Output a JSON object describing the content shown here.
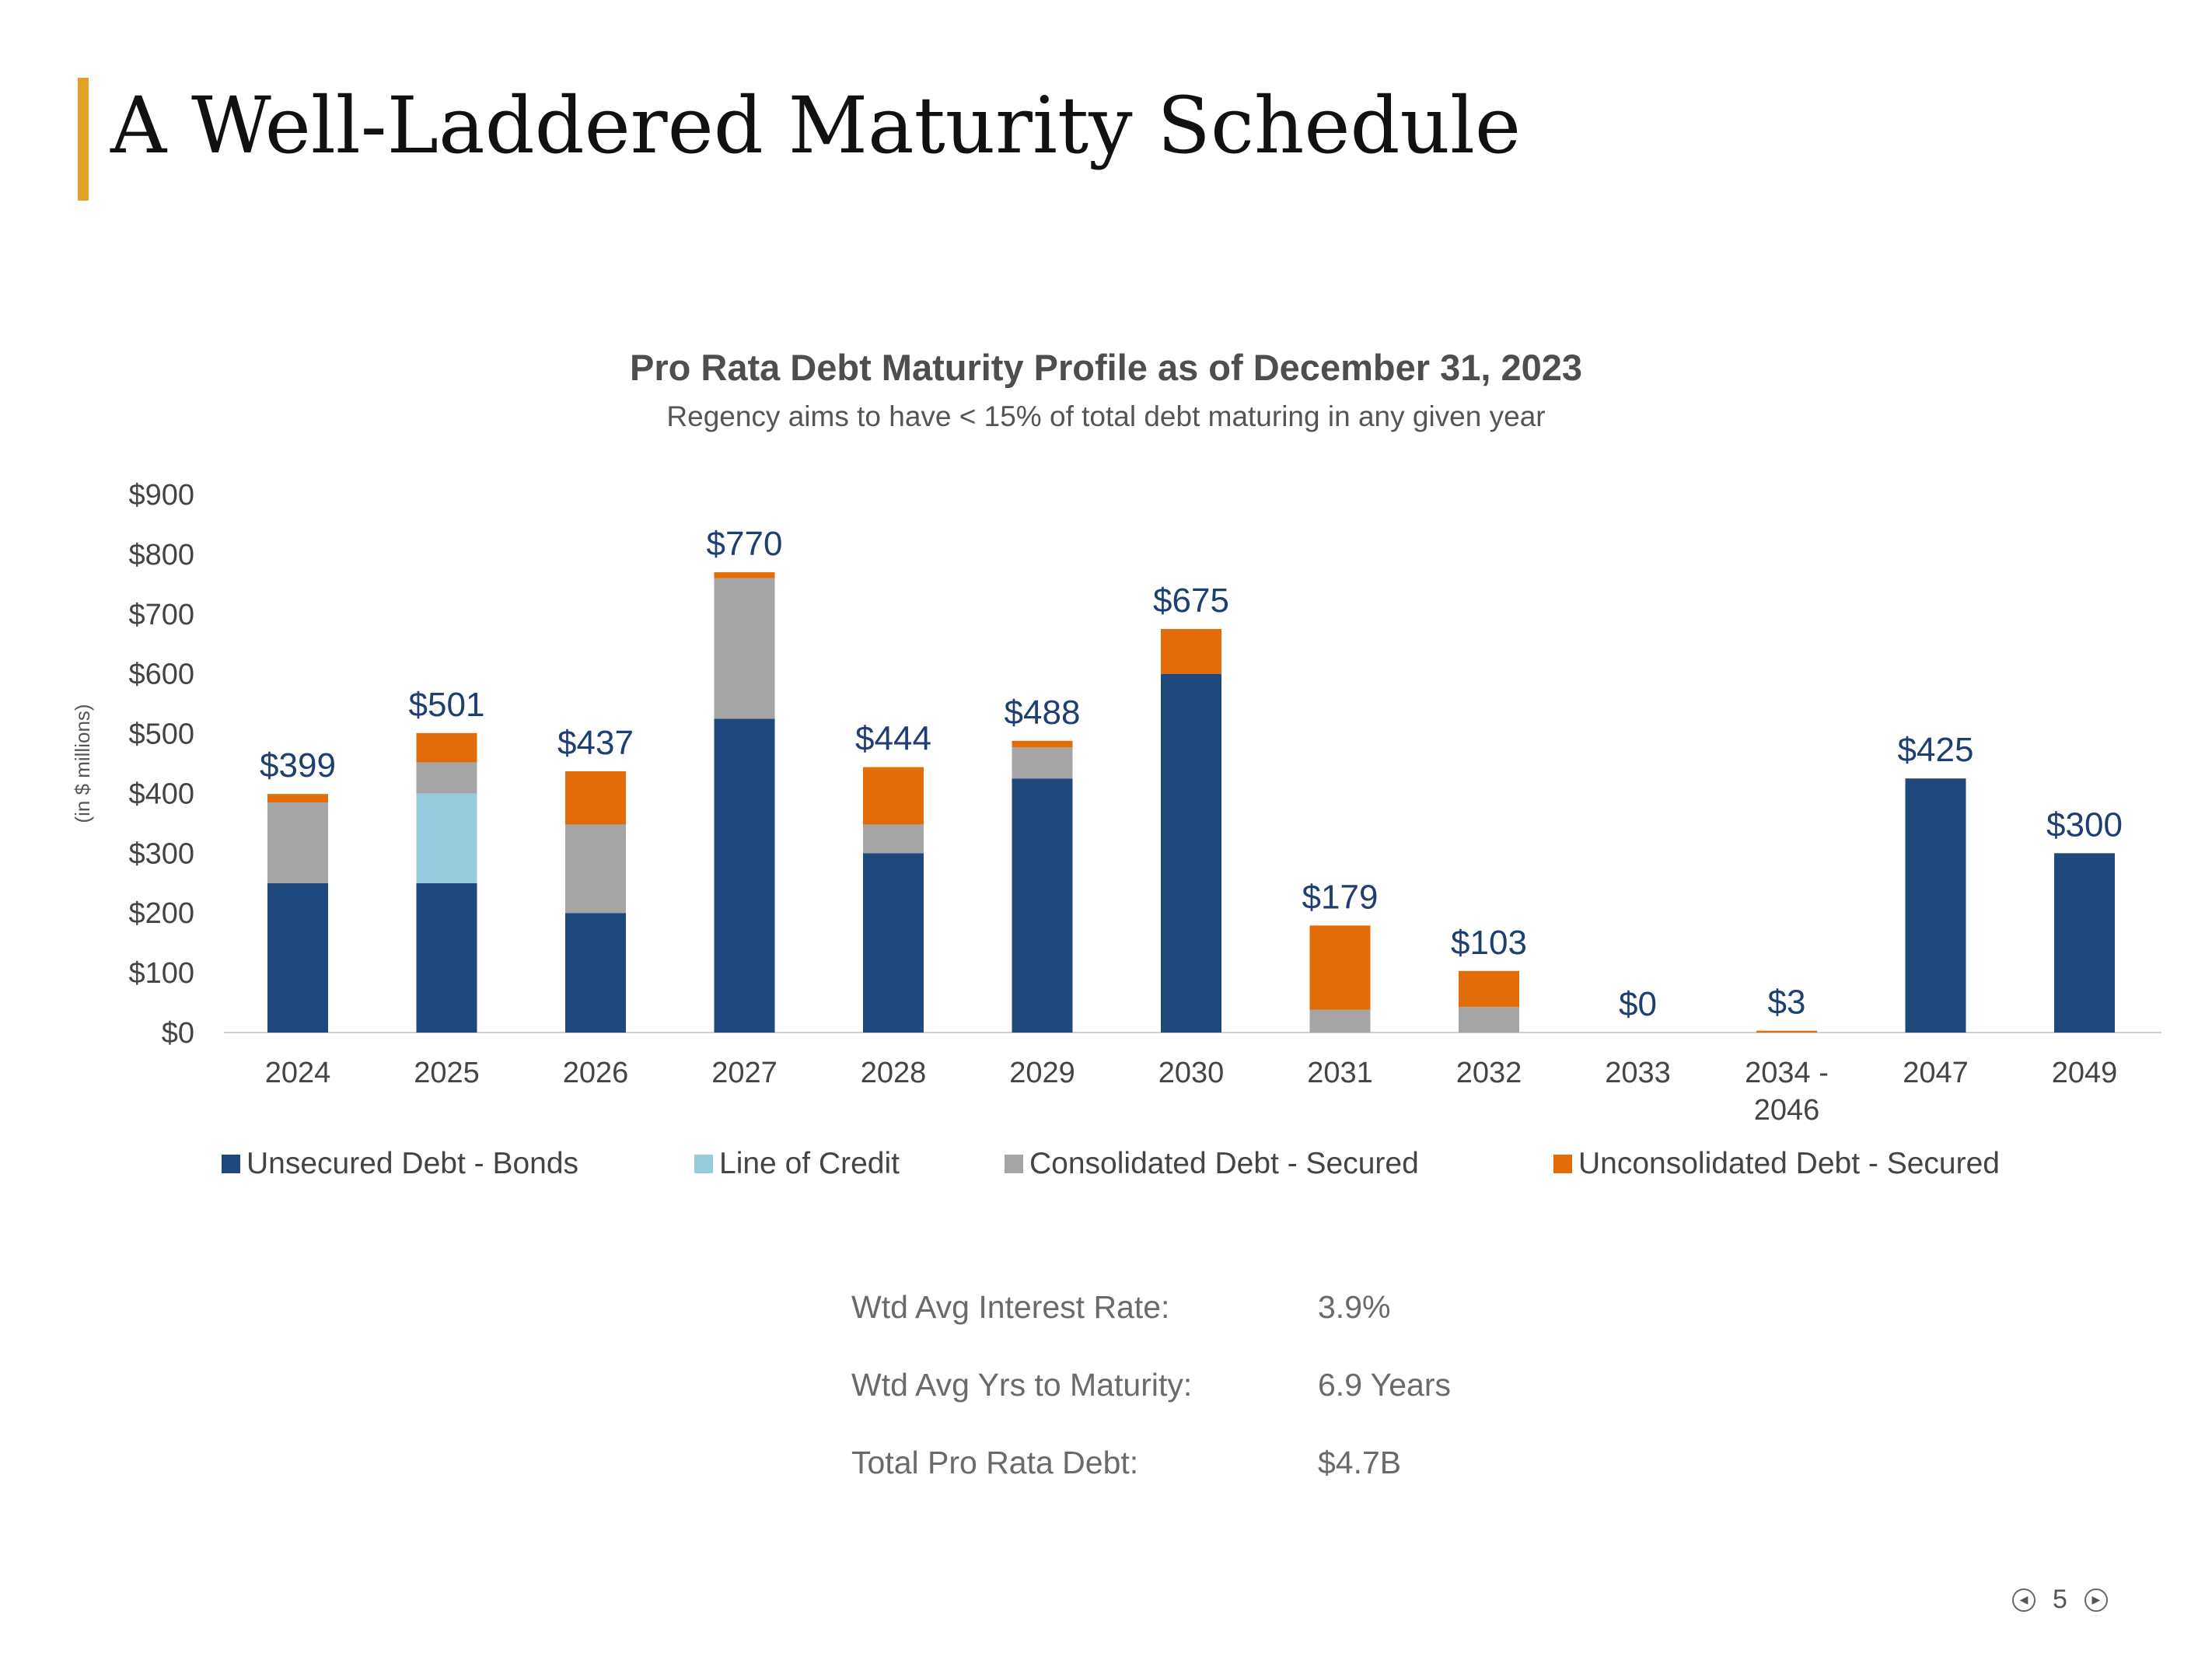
{
  "page": {
    "title": "A Well-Laddered Maturity Schedule",
    "page_number": "5"
  },
  "colors": {
    "accent": "#E3A125"
  },
  "chart_data": {
    "type": "bar",
    "stacked": true,
    "title": "Pro Rata Debt Maturity Profile as of December 31, 2023",
    "subtitle": "Regency aims to have < 15% of total debt maturing in any given year",
    "ylabel": "(in $ millions)",
    "ylim": [
      0,
      900
    ],
    "yticks": [
      0,
      100,
      200,
      300,
      400,
      500,
      600,
      700,
      800,
      900
    ],
    "ytick_labels": [
      "$0",
      "$100",
      "$200",
      "$300",
      "$400",
      "$500",
      "$600",
      "$700",
      "$800",
      "$900"
    ],
    "categories": [
      "2024",
      "2025",
      "2026",
      "2027",
      "2028",
      "2029",
      "2030",
      "2031",
      "2032",
      "2033",
      "2034 - 2046",
      "2047",
      "2049"
    ],
    "category_lines": [
      [
        "2024"
      ],
      [
        "2025"
      ],
      [
        "2026"
      ],
      [
        "2027"
      ],
      [
        "2028"
      ],
      [
        "2029"
      ],
      [
        "2030"
      ],
      [
        "2031"
      ],
      [
        "2032"
      ],
      [
        "2033"
      ],
      [
        "2034 -",
        "2046"
      ],
      [
        "2047"
      ],
      [
        "2049"
      ]
    ],
    "series": [
      {
        "name": "Unsecured Debt - Bonds",
        "color": "#1F497D",
        "values": [
          250,
          250,
          200,
          525,
          300,
          425,
          600,
          0,
          0,
          0,
          0,
          425,
          300
        ]
      },
      {
        "name": "Line of Credit",
        "color": "#97CCDE",
        "values": [
          0,
          150,
          0,
          0,
          0,
          0,
          0,
          0,
          0,
          0,
          0,
          0,
          0
        ]
      },
      {
        "name": "Consolidated Debt - Secured",
        "color": "#A5A5A5",
        "values": [
          135,
          52,
          148,
          235,
          48,
          52,
          0,
          38,
          43,
          0,
          0,
          0,
          0
        ]
      },
      {
        "name": "Unconsolidated Debt - Secured",
        "color": "#E36C0A",
        "values": [
          14,
          49,
          89,
          10,
          96,
          11,
          75,
          141,
          60,
          0,
          3,
          0,
          0
        ]
      }
    ],
    "totals": [
      "$399",
      "$501",
      "$437",
      "$770",
      "$444",
      "$488",
      "$675",
      "$179",
      "$103",
      "$0",
      "$3",
      "$425",
      "$300"
    ],
    "totals_values": [
      399,
      501,
      437,
      770,
      444,
      488,
      675,
      179,
      103,
      0,
      3,
      425,
      300
    ],
    "legend_position": "bottom"
  },
  "stats": [
    {
      "label": "Wtd Avg Interest Rate:",
      "value": "3.9%"
    },
    {
      "label": "Wtd Avg Yrs to Maturity:",
      "value": "6.9 Years"
    },
    {
      "label": "Total Pro Rata Debt:",
      "value": "$4.7B"
    }
  ]
}
